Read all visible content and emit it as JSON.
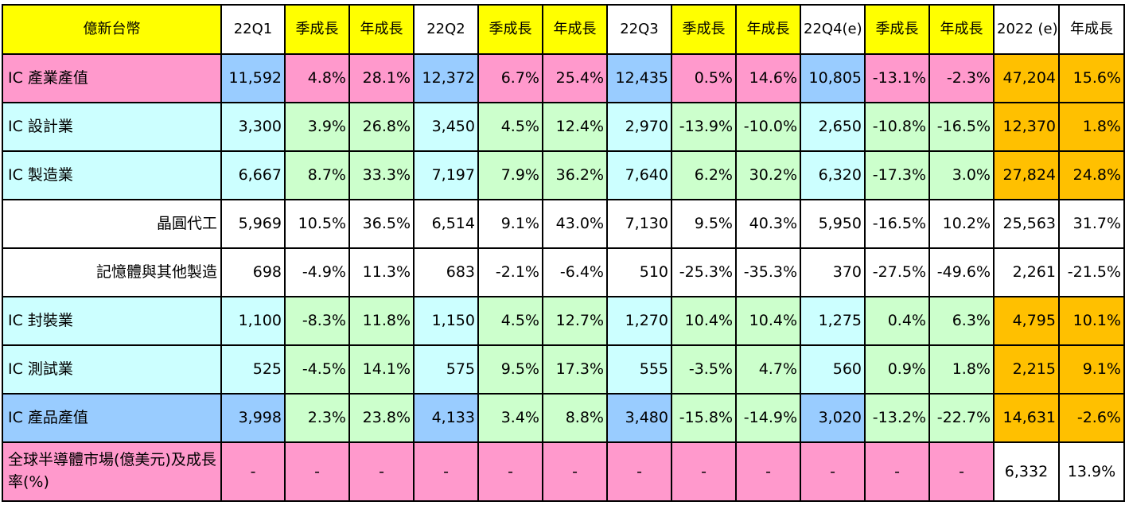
{
  "header": [
    "億新台幣",
    "22Q1",
    "季成長",
    "年成長",
    "22Q2",
    "季成長",
    "年成長",
    "22Q3",
    "季成長",
    "年成長",
    "22Q4(e)",
    "季成長",
    "年成長",
    "2022 (e)",
    "年成長"
  ],
  "rows": [
    {
      "label": "IC 產業產值",
      "values": [
        "11,592",
        "4.8%",
        "28.1%",
        "12,372",
        "6.7%",
        "25.4%",
        "12,435",
        "0.5%",
        "14.6%",
        "10,805",
        "-13.1%",
        "-2.3%",
        "47,204",
        "15.6%"
      ]
    },
    {
      "label": "IC 設計業",
      "values": [
        "3,300",
        "3.9%",
        "26.8%",
        "3,450",
        "4.5%",
        "12.4%",
        "2,970",
        "-13.9%",
        "-10.0%",
        "2,650",
        "-10.8%",
        "-16.5%",
        "12,370",
        "1.8%"
      ]
    },
    {
      "label": "IC 製造業",
      "values": [
        "6,667",
        "8.7%",
        "33.3%",
        "7,197",
        "7.9%",
        "36.2%",
        "7,640",
        "6.2%",
        "30.2%",
        "6,320",
        "-17.3%",
        "3.0%",
        "27,824",
        "24.8%"
      ]
    },
    {
      "label": "晶圓代工",
      "values": [
        "5,969",
        "10.5%",
        "36.5%",
        "6,514",
        "9.1%",
        "43.0%",
        "7,130",
        "9.5%",
        "40.3%",
        "5,950",
        "-16.5%",
        "10.2%",
        "25,563",
        "31.7%"
      ]
    },
    {
      "label": "記憶體與其他製造",
      "values": [
        "698",
        "-4.9%",
        "11.3%",
        "683",
        "-2.1%",
        "-6.4%",
        "510",
        "-25.3%",
        "-35.3%",
        "370",
        "-27.5%",
        "-49.6%",
        "2,261",
        "-21.5%"
      ]
    },
    {
      "label": "IC 封裝業",
      "values": [
        "1,100",
        "-8.3%",
        "11.8%",
        "1,150",
        "4.5%",
        "12.7%",
        "1,270",
        "10.4%",
        "10.4%",
        "1,275",
        "0.4%",
        "6.3%",
        "4,795",
        "10.1%"
      ]
    },
    {
      "label": "IC 測試業",
      "values": [
        "525",
        "-4.5%",
        "14.1%",
        "575",
        "9.5%",
        "17.3%",
        "555",
        "-3.5%",
        "4.7%",
        "560",
        "0.9%",
        "1.8%",
        "2,215",
        "9.1%"
      ]
    },
    {
      "label": "IC 產品產值",
      "values": [
        "3,998",
        "2.3%",
        "23.8%",
        "4,133",
        "3.4%",
        "8.8%",
        "3,480",
        "-15.8%",
        "-14.9%",
        "3,020",
        "-13.2%",
        "-22.7%",
        "14,631",
        "-2.6%"
      ]
    },
    {
      "label": "全球半導體市場(億美元)及成長率(%)",
      "values": [
        "-",
        "-",
        "-",
        "-",
        "-",
        "-",
        "-",
        "-",
        "-",
        "-",
        "-",
        "-",
        "6,332",
        "13.9%"
      ]
    }
  ],
  "colors": {
    "header_yellow": "#ffff00",
    "pink": "#ff99cc",
    "blue": "#99ccff",
    "cyan": "#ccffff",
    "green": "#ccffcc",
    "orange": "#ffc000",
    "white": "#ffffff"
  }
}
